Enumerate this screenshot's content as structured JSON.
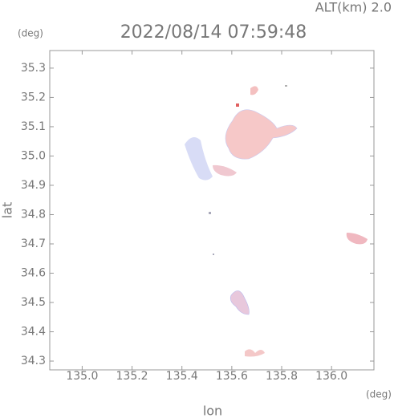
{
  "chart_data": {
    "type": "map",
    "title": "2022/08/14 07:59:48",
    "altitude_label": "ALT(km) 2.0",
    "y_unit": "(deg)",
    "x_unit": "(deg)",
    "xlabel": "lon",
    "ylabel": "lat",
    "xlim": [
      134.87,
      136.17
    ],
    "ylim": [
      34.27,
      35.36
    ],
    "xticks": [
      {
        "value": 135.0,
        "label": "135.0"
      },
      {
        "value": 135.2,
        "label": "135.2"
      },
      {
        "value": 135.4,
        "label": "135.4"
      },
      {
        "value": 135.6,
        "label": "135.6"
      },
      {
        "value": 135.8,
        "label": "135.8"
      },
      {
        "value": 136.0,
        "label": "136.0"
      }
    ],
    "yticks": [
      {
        "value": 34.3,
        "label": "34.3"
      },
      {
        "value": 34.4,
        "label": "34.4"
      },
      {
        "value": 34.5,
        "label": "34.5"
      },
      {
        "value": 34.6,
        "label": "34.6"
      },
      {
        "value": 34.7,
        "label": "34.7"
      },
      {
        "value": 34.8,
        "label": "34.8"
      },
      {
        "value": 34.9,
        "label": "34.9"
      },
      {
        "value": 35.0,
        "label": "35.0"
      },
      {
        "value": 35.1,
        "label": "35.1"
      },
      {
        "value": 35.2,
        "label": "35.2"
      },
      {
        "value": 35.3,
        "label": "35.3"
      }
    ]
  }
}
